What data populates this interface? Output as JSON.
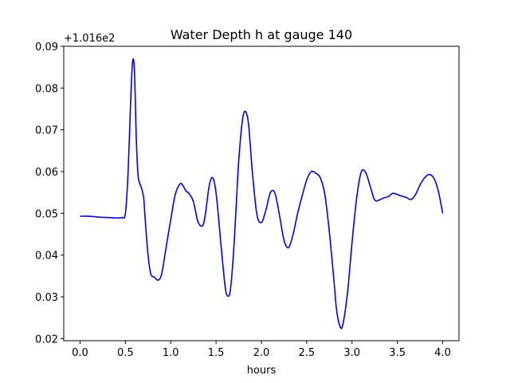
{
  "chart_data": {
    "type": "line",
    "title": "Water Depth h at gauge 140",
    "xlabel": "hours",
    "ylabel": "",
    "offset_label": "+1.016e2",
    "xlim": [
      -0.18,
      4.18
    ],
    "ylim": [
      0.0195,
      0.09
    ],
    "xticks": [
      0.0,
      0.5,
      1.0,
      1.5,
      2.0,
      2.5,
      3.0,
      3.5,
      4.0
    ],
    "xtick_labels": [
      "0.0",
      "0.5",
      "1.0",
      "1.5",
      "2.0",
      "2.5",
      "3.0",
      "3.5",
      "4.0"
    ],
    "yticks": [
      0.02,
      0.03,
      0.04,
      0.05,
      0.06,
      0.07,
      0.08,
      0.09
    ],
    "ytick_labels": [
      "0.02",
      "0.03",
      "0.04",
      "0.05",
      "0.06",
      "0.07",
      "0.08",
      "0.09"
    ],
    "grid": false,
    "series": [
      {
        "color": "#0000ff",
        "x": [
          0.0,
          0.1,
          0.2,
          0.3,
          0.4,
          0.46,
          0.5,
          0.53,
          0.56,
          0.58,
          0.6,
          0.62,
          0.64,
          0.67,
          0.7,
          0.72,
          0.75,
          0.78,
          0.82,
          0.86,
          0.9,
          0.95,
          1.0,
          1.05,
          1.1,
          1.13,
          1.17,
          1.2,
          1.25,
          1.3,
          1.35,
          1.38,
          1.42,
          1.45,
          1.48,
          1.51,
          1.55,
          1.6,
          1.63,
          1.66,
          1.7,
          1.74,
          1.77,
          1.8,
          1.83,
          1.86,
          1.9,
          1.95,
          2.0,
          2.05,
          2.1,
          2.15,
          2.2,
          2.25,
          2.3,
          2.35,
          2.4,
          2.45,
          2.5,
          2.55,
          2.6,
          2.65,
          2.7,
          2.75,
          2.8,
          2.83,
          2.87,
          2.9,
          2.95,
          3.0,
          3.05,
          3.1,
          3.15,
          3.2,
          3.25,
          3.3,
          3.35,
          3.4,
          3.45,
          3.5,
          3.55,
          3.6,
          3.65,
          3.7,
          3.75,
          3.8,
          3.85,
          3.9,
          3.95,
          4.0
        ],
        "y": [
          0.0493,
          0.0493,
          0.0491,
          0.049,
          0.0489,
          0.049,
          0.05,
          0.06,
          0.078,
          0.0865,
          0.084,
          0.068,
          0.059,
          0.0565,
          0.054,
          0.048,
          0.04,
          0.0355,
          0.0347,
          0.034,
          0.0355,
          0.042,
          0.0485,
          0.0545,
          0.057,
          0.0568,
          0.0553,
          0.0548,
          0.0528,
          0.048,
          0.047,
          0.0495,
          0.056,
          0.0585,
          0.0575,
          0.053,
          0.0435,
          0.0325,
          0.0302,
          0.032,
          0.043,
          0.0592,
          0.068,
          0.0735,
          0.0742,
          0.071,
          0.06,
          0.0498,
          0.0478,
          0.0508,
          0.055,
          0.0548,
          0.0495,
          0.0435,
          0.0418,
          0.045,
          0.05,
          0.0542,
          0.058,
          0.06,
          0.0596,
          0.0585,
          0.0545,
          0.0455,
          0.034,
          0.0268,
          0.0228,
          0.0235,
          0.031,
          0.043,
          0.0535,
          0.0598,
          0.0598,
          0.0565,
          0.0532,
          0.0532,
          0.0537,
          0.054,
          0.0548,
          0.0545,
          0.0541,
          0.0538,
          0.0533,
          0.0545,
          0.0568,
          0.0585,
          0.0593,
          0.0585,
          0.0555,
          0.05
        ]
      }
    ]
  }
}
